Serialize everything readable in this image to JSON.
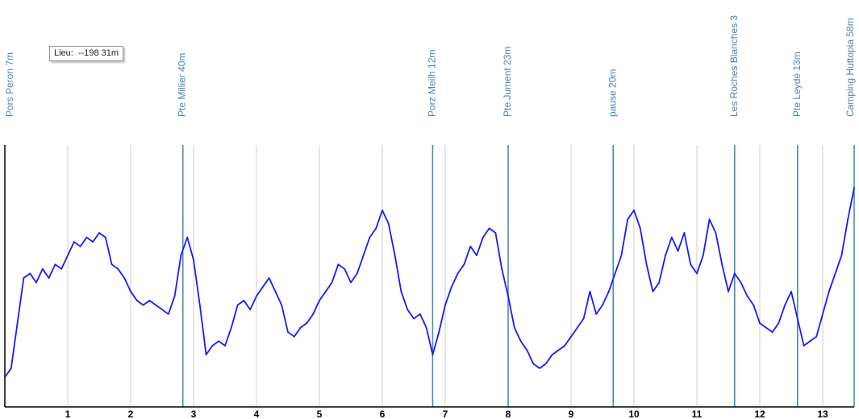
{
  "tooltip": {
    "label": "Lieu:",
    "value": "--198  31m"
  },
  "colors": {
    "profile": "#1a1aff",
    "marker": "#4a8ab8",
    "label": "#4a86b4",
    "grid": "#cccccc",
    "axis": "#000000"
  },
  "chart_data": {
    "type": "line",
    "xlim": [
      0,
      13.5
    ],
    "x_ticks": [
      "1",
      "2",
      "3",
      "4",
      "5",
      "6",
      "7",
      "8",
      "9",
      "10",
      "11",
      "12",
      "13"
    ],
    "waypoints": [
      {
        "x": 0.0,
        "label": "Pors Peron  7m"
      },
      {
        "x": 2.83,
        "label": "Pte Millier  40m"
      },
      {
        "x": 6.8,
        "label": "Porz Meilh  12m"
      },
      {
        "x": 8.0,
        "label": "Pte Jument  23m"
      },
      {
        "x": 9.67,
        "label": "pause  20m"
      },
      {
        "x": 11.6,
        "label": "Les Roches Blanches  3"
      },
      {
        "x": 12.6,
        "label": "Pte Leydé  13m"
      },
      {
        "x": 13.5,
        "label": "Camping Huttopia  58m"
      }
    ],
    "series": [
      {
        "x": [
          0.0,
          0.1,
          0.2,
          0.3,
          0.4,
          0.5,
          0.6,
          0.7,
          0.8,
          0.9,
          1.0,
          1.1,
          1.2,
          1.3,
          1.4,
          1.5,
          1.6,
          1.7,
          1.8,
          1.9,
          2.0,
          2.1,
          2.2,
          2.3,
          2.4,
          2.5,
          2.6,
          2.7,
          2.8,
          2.9,
          3.0,
          3.1,
          3.2,
          3.3,
          3.4,
          3.5,
          3.6,
          3.7,
          3.8,
          3.9,
          4.0,
          4.1,
          4.2,
          4.3,
          4.4,
          4.5,
          4.6,
          4.7,
          4.8,
          4.9,
          5.0,
          5.1,
          5.2,
          5.3,
          5.4,
          5.5,
          5.6,
          5.7,
          5.8,
          5.9,
          6.0,
          6.1,
          6.2,
          6.3,
          6.4,
          6.5,
          6.6,
          6.7,
          6.8,
          6.9,
          7.0,
          7.1,
          7.2,
          7.3,
          7.4,
          7.5,
          7.6,
          7.7,
          7.8,
          7.9,
          8.0,
          8.1,
          8.2,
          8.3,
          8.4,
          8.5,
          8.6,
          8.7,
          8.8,
          8.9,
          9.0,
          9.1,
          9.2,
          9.3,
          9.4,
          9.5,
          9.6,
          9.7,
          9.8,
          9.9,
          10.0,
          10.1,
          10.2,
          10.3,
          10.4,
          10.5,
          10.6,
          10.7,
          10.8,
          10.9,
          11.0,
          11.1,
          11.2,
          11.3,
          11.4,
          11.5,
          11.6,
          11.7,
          11.8,
          11.9,
          12.0,
          12.1,
          12.2,
          12.3,
          12.4,
          12.5,
          12.6,
          12.7,
          12.8,
          12.9,
          13.0,
          13.1,
          13.2,
          13.3,
          13.4,
          13.5
        ],
        "values": [
          3,
          5,
          15,
          25,
          26,
          24,
          27,
          25,
          28,
          27,
          30,
          33,
          32,
          34,
          33,
          35,
          34,
          28,
          27,
          25,
          22,
          20,
          19,
          20,
          19,
          18,
          17,
          21,
          30,
          34,
          29,
          19,
          8,
          10,
          11,
          10,
          14,
          19,
          20,
          18,
          21,
          23,
          25,
          22,
          19,
          13,
          12,
          14,
          15,
          17,
          20,
          22,
          24,
          28,
          27,
          24,
          26,
          30,
          34,
          36,
          40,
          37,
          30,
          22,
          18,
          16,
          17,
          14,
          8,
          13,
          19,
          23,
          26,
          28,
          32,
          30,
          34,
          36,
          35,
          27,
          21,
          14,
          11,
          9,
          6,
          5,
          6,
          8,
          9,
          10,
          12,
          14,
          16,
          22,
          17,
          19,
          22,
          26,
          30,
          38,
          40,
          36,
          28,
          22,
          24,
          30,
          34,
          31,
          35,
          28,
          26,
          30,
          38,
          35,
          28,
          22,
          26,
          24,
          21,
          19,
          15,
          14,
          13,
          15,
          19,
          22,
          16,
          10,
          11,
          12,
          17,
          22,
          26,
          30,
          38,
          45
        ]
      }
    ],
    "ylim": [
      0,
      100
    ]
  }
}
